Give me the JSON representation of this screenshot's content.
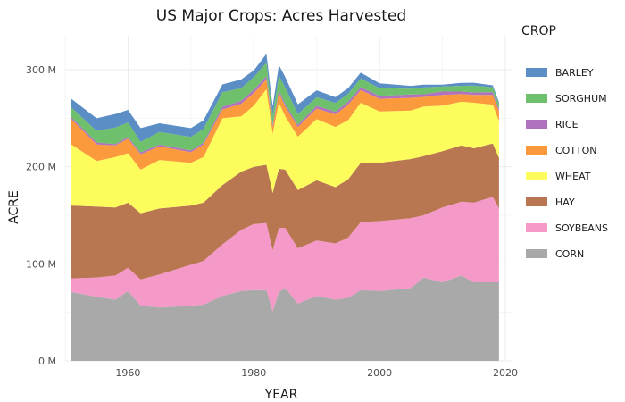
{
  "chart_data": {
    "type": "area",
    "stacked": true,
    "title": "US Major Crops: Acres Harvested",
    "xlabel": "YEAR",
    "ylabel": "ACRE",
    "xlim": [
      1950,
      2021
    ],
    "ylim": [
      0,
      335000000
    ],
    "x_ticks": [
      1960,
      1980,
      2000,
      2020
    ],
    "x_tick_labels": [
      "1960",
      "1980",
      "2000",
      "2020"
    ],
    "y_ticks": [
      0,
      100000000,
      200000000,
      300000000
    ],
    "y_tick_labels": [
      "0 M",
      "100 M",
      "200 M",
      "300 M"
    ],
    "grid": true,
    "legend_title": "CROP",
    "legend_position": "right",
    "legend_order": [
      "BARLEY",
      "SORGHUM",
      "RICE",
      "COTTON",
      "WHEAT",
      "HAY",
      "SOYBEANS",
      "CORN"
    ],
    "x": [
      1951,
      1955,
      1958,
      1960,
      1962,
      1965,
      1970,
      1972,
      1975,
      1978,
      1980,
      1982,
      1983,
      1984,
      1985,
      1987,
      1990,
      1993,
      1995,
      1997,
      2000,
      2005,
      2007,
      2010,
      2013,
      2015,
      2018,
      2019
    ],
    "series": [
      {
        "name": "CORN",
        "color": "#a9a9a9",
        "values": [
          71,
          66,
          63,
          72,
          57,
          55,
          57,
          58,
          67,
          72,
          73,
          73,
          51,
          71,
          75,
          59,
          67,
          63,
          65,
          73,
          72,
          75,
          86,
          81,
          88,
          81,
          81,
          81
        ]
      },
      {
        "name": "SOYBEANS",
        "color": "#f599c8",
        "values": [
          14,
          20,
          25,
          24,
          27,
          34,
          42,
          45,
          53,
          63,
          68,
          69,
          63,
          66,
          62,
          57,
          57,
          58,
          62,
          70,
          72,
          72,
          64,
          77,
          76,
          82,
          88,
          76
        ]
      },
      {
        "name": "HAY",
        "color": "#b87651",
        "values": [
          75,
          73,
          70,
          67,
          68,
          68,
          61,
          60,
          61,
          60,
          59,
          60,
          59,
          61,
          60,
          60,
          62,
          58,
          60,
          61,
          60,
          61,
          61,
          58,
          58,
          56,
          55,
          52
        ]
      },
      {
        "name": "WHEAT",
        "color": "#fcfc5c",
        "values": [
          63,
          47,
          52,
          51,
          45,
          50,
          44,
          47,
          69,
          57,
          63,
          78,
          61,
          68,
          55,
          55,
          63,
          62,
          61,
          62,
          53,
          50,
          51,
          47,
          45,
          47,
          40,
          38
        ]
      },
      {
        "name": "COTTON",
        "color": "#fb9a3c",
        "values": [
          26,
          17,
          12,
          15,
          16,
          14,
          11,
          13,
          9,
          13,
          13,
          10,
          7,
          10,
          10,
          10,
          11,
          13,
          16,
          13,
          13,
          13,
          10,
          11,
          8,
          8,
          10,
          10
        ]
      },
      {
        "name": "RICE",
        "color": "#b072be",
        "values": [
          2,
          2,
          1.4,
          1.6,
          1.8,
          1.8,
          1.8,
          1.8,
          2.8,
          3.0,
          3.3,
          3.3,
          2.2,
          2.8,
          2.5,
          2.3,
          2.8,
          2.8,
          3.1,
          3.0,
          3.0,
          3.4,
          2.7,
          3.6,
          2.5,
          2.6,
          2.9,
          2.5
        ]
      },
      {
        "name": "SORGHUM",
        "color": "#6fc06d",
        "values": [
          10,
          12,
          17,
          15,
          11,
          13,
          14,
          14,
          15,
          13,
          13,
          14,
          10,
          15,
          17,
          11,
          9,
          9,
          8,
          9,
          8,
          6,
          7,
          5,
          6,
          7,
          5,
          5
        ]
      },
      {
        "name": "BARLEY",
        "color": "#5b8ec5",
        "values": [
          9,
          13,
          14,
          13,
          14,
          9,
          9,
          9,
          8,
          9,
          7,
          9,
          9,
          11,
          11,
          10,
          7,
          6,
          6,
          6,
          5,
          3,
          3,
          2,
          3,
          3,
          2,
          2
        ]
      }
    ],
    "value_unit": "million acres"
  }
}
